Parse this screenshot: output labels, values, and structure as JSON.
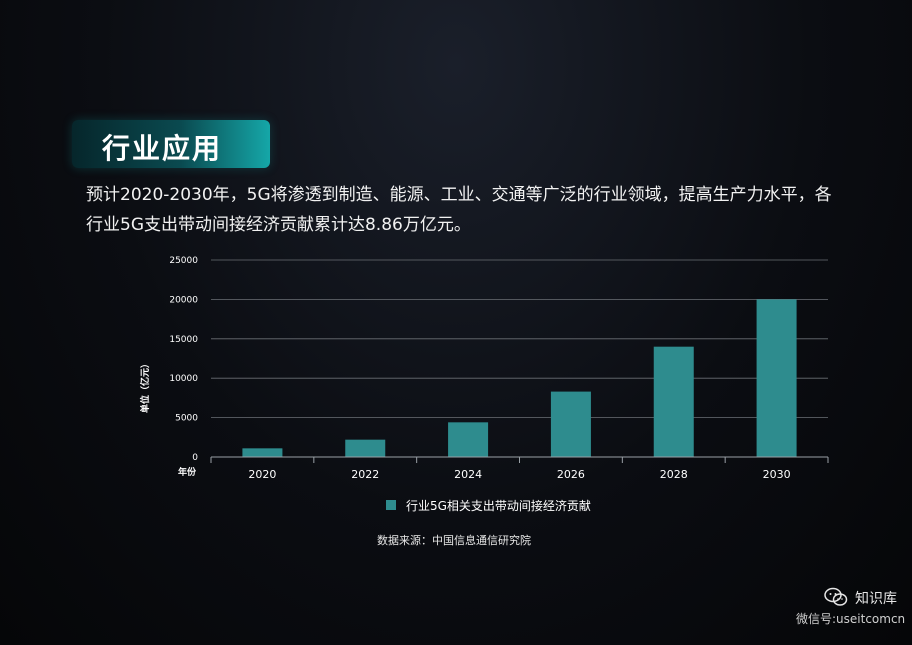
{
  "section_title": "行业应用",
  "paragraph": {
    "line1": "预计2020-2030年，5G将渗透到制造、能源、工业、交通等广泛的行业领域，提高生产力水平，各",
    "line2": "行业5G支出带动间接经济贡献累计达8.86万亿元。"
  },
  "chart_data": {
    "type": "bar",
    "categories": [
      "2020",
      "2022",
      "2024",
      "2026",
      "2028",
      "2030"
    ],
    "series": [
      {
        "name": "行业5G相关支出带动间接经济贡献",
        "values": [
          1100,
          2200,
          4400,
          8300,
          14000,
          20000
        ],
        "color": "#2e8c8e"
      }
    ],
    "ylim": [
      0,
      25000
    ],
    "yticks": [
      0,
      5000,
      10000,
      15000,
      20000,
      25000
    ],
    "ylabel": "单位（亿元）",
    "xlabel": "年份",
    "grid": true,
    "legend_position": "bottom"
  },
  "source": "数据来源：中国信息通信研究院",
  "watermark": {
    "icon": "wechat-icon",
    "name": "知识库",
    "id": "微信号:useitcomcn"
  }
}
